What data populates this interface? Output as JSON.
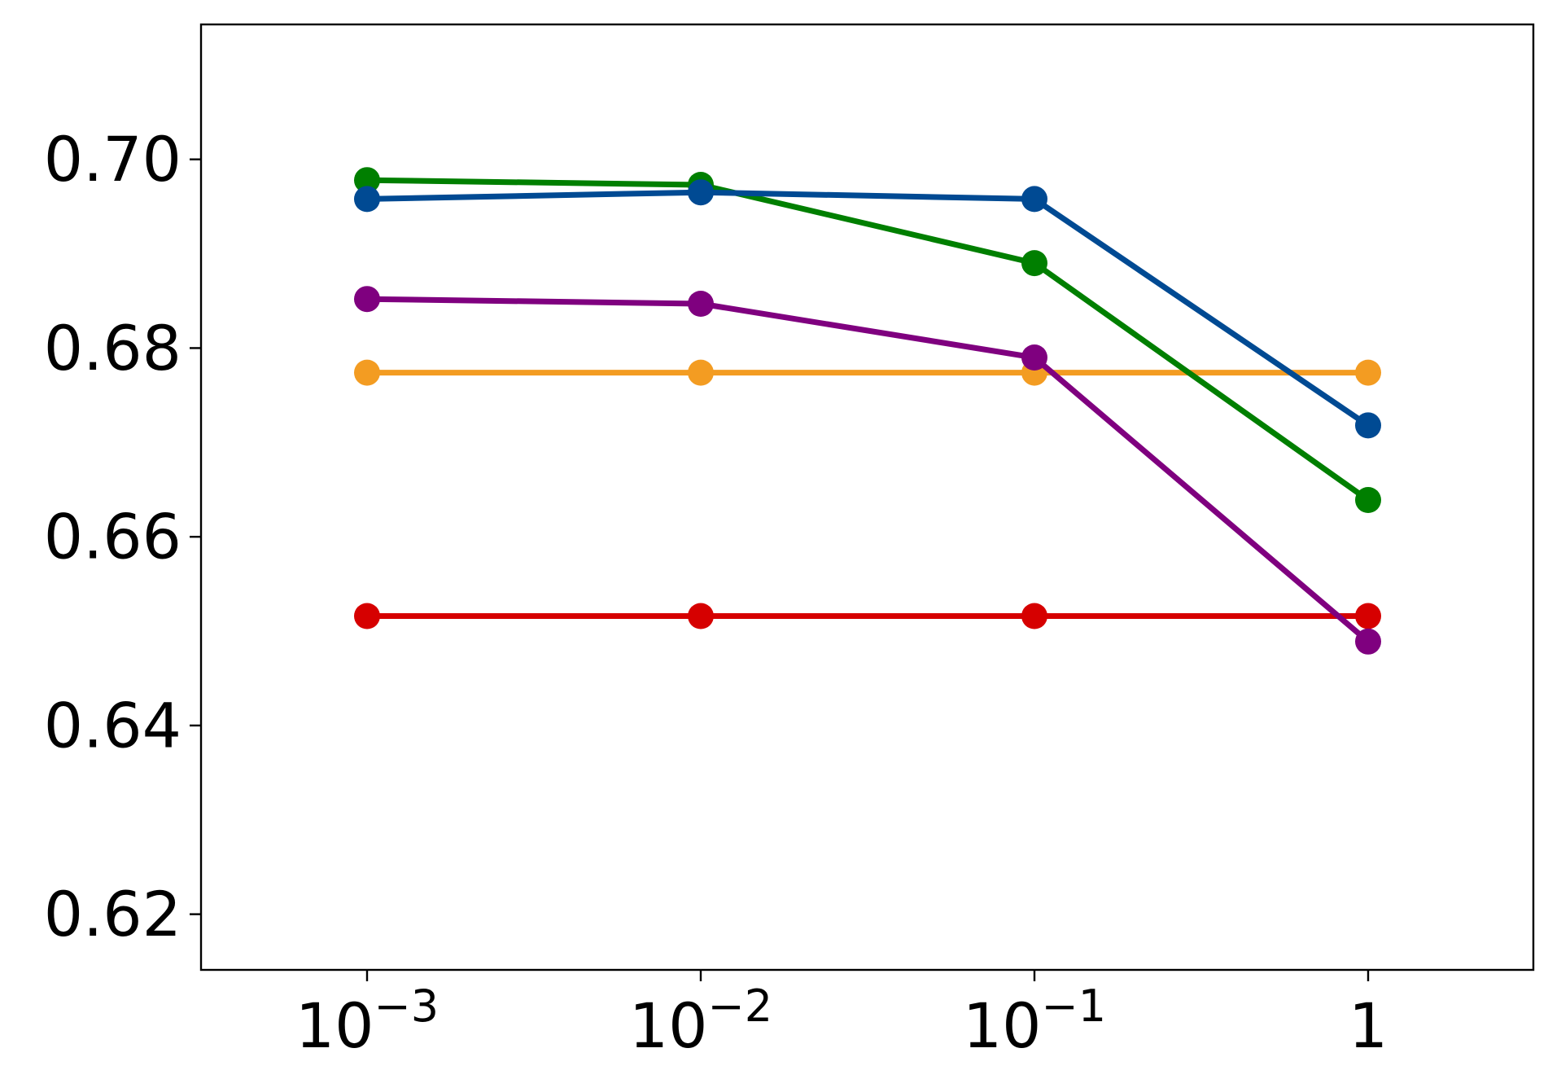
{
  "chart_data": {
    "type": "line",
    "title": "",
    "xlabel": "",
    "ylabel": "",
    "x_scale": "log",
    "x": [
      0.001,
      0.01,
      0.1,
      1
    ],
    "x_tick_labels": [
      {
        "base": "10",
        "exp": "−3"
      },
      {
        "base": "10",
        "exp": "−2"
      },
      {
        "base": "10",
        "exp": "−1"
      },
      {
        "base": "1",
        "exp": ""
      }
    ],
    "ylim": [
      0.6141,
      0.7143
    ],
    "y_ticks": [
      0.62,
      0.64,
      0.66,
      0.68,
      0.7
    ],
    "y_tick_labels": [
      "0.62",
      "0.64",
      "0.66",
      "0.68",
      "0.70"
    ],
    "grid": false,
    "legend": "none",
    "series": [
      {
        "color": "#f39c22",
        "values": [
          0.6774,
          0.6774,
          0.6774,
          0.6774
        ]
      },
      {
        "color": "#d60000",
        "values": [
          0.6516,
          0.6516,
          0.6516,
          0.6516
        ]
      },
      {
        "color": "#7f007f",
        "values": [
          0.6852,
          0.6847,
          0.679,
          0.6489
        ]
      },
      {
        "color": "#007f00",
        "values": [
          0.6978,
          0.6973,
          0.689,
          0.6639
        ]
      },
      {
        "color": "#004a93",
        "values": [
          0.6958,
          0.6965,
          0.6958,
          0.6718
        ]
      }
    ]
  }
}
